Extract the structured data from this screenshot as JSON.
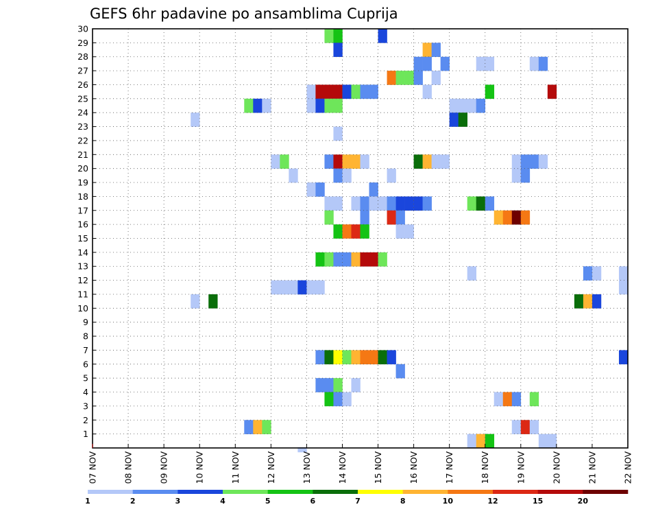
{
  "chart_data": {
    "type": "heatmap",
    "title": "GEFS 6hr padavine po ansamblima Cuprija",
    "xlabel": "",
    "ylabel": "",
    "x_start": "07 NOV",
    "x_end": "22 NOV",
    "x_step_hours": 6,
    "x_tick_labels": [
      "07 NOV",
      "08 NOV",
      "09 NOV",
      "10 NOV",
      "11 NOV",
      "12 NOV",
      "13 NOV",
      "14 NOV",
      "15 NOV",
      "16 NOV",
      "17 NOV",
      "18 NOV",
      "19 NOV",
      "20 NOV",
      "21 NOV",
      "22 NOV"
    ],
    "y_tick_labels": [
      "1",
      "2",
      "3",
      "4",
      "5",
      "6",
      "7",
      "8",
      "9",
      "10",
      "11",
      "12",
      "13",
      "14",
      "15",
      "16",
      "17",
      "18",
      "19",
      "20",
      "21",
      "22",
      "23",
      "24",
      "25",
      "26",
      "27",
      "28",
      "29",
      "30"
    ],
    "ylim": [
      0,
      30
    ],
    "grid": true,
    "legend": {
      "placement": "bottom",
      "labels": [
        "1",
        "2",
        "3",
        "4",
        "5",
        "6",
        "7",
        "8",
        "10",
        "12",
        "15",
        "20"
      ],
      "colors": [
        "#b4c8f8",
        "#5a8cf0",
        "#1a46dc",
        "#6ee65a",
        "#14c314",
        "#0a6e0a",
        "#ffff00",
        "#ffb432",
        "#f57814",
        "#dc2814",
        "#b40a0a",
        "#6e0000"
      ]
    },
    "cells": [
      [
        26,
        30,
        3
      ],
      [
        27,
        30,
        4
      ],
      [
        32,
        30,
        2
      ],
      [
        27,
        29,
        2
      ],
      [
        37,
        29,
        7
      ],
      [
        38,
        29,
        1
      ],
      [
        36,
        28,
        1
      ],
      [
        37,
        28,
        1
      ],
      [
        39,
        28,
        1
      ],
      [
        43,
        28,
        0
      ],
      [
        44,
        28,
        0
      ],
      [
        49,
        28,
        0
      ],
      [
        50,
        28,
        1
      ],
      [
        33,
        27,
        8
      ],
      [
        34,
        27,
        3
      ],
      [
        35,
        27,
        3
      ],
      [
        36,
        27,
        1
      ],
      [
        38,
        27,
        0
      ],
      [
        60,
        27,
        0
      ],
      [
        24,
        26,
        0
      ],
      [
        25,
        26,
        10
      ],
      [
        26,
        26,
        10
      ],
      [
        27,
        26,
        10
      ],
      [
        28,
        26,
        2
      ],
      [
        29,
        26,
        3
      ],
      [
        30,
        26,
        1
      ],
      [
        31,
        26,
        1
      ],
      [
        37,
        26,
        0
      ],
      [
        44,
        26,
        4
      ],
      [
        51,
        26,
        10
      ],
      [
        60,
        26,
        0
      ],
      [
        17,
        25,
        3
      ],
      [
        18,
        25,
        2
      ],
      [
        19,
        25,
        0
      ],
      [
        24,
        25,
        0
      ],
      [
        25,
        25,
        2
      ],
      [
        26,
        25,
        3
      ],
      [
        27,
        25,
        3
      ],
      [
        40,
        25,
        0
      ],
      [
        41,
        25,
        0
      ],
      [
        42,
        25,
        0
      ],
      [
        43,
        25,
        1
      ],
      [
        11,
        24,
        0
      ],
      [
        40,
        24,
        2
      ],
      [
        41,
        24,
        5
      ],
      [
        60,
        24,
        2
      ],
      [
        27,
        23,
        0
      ],
      [
        20,
        21,
        0
      ],
      [
        21,
        21,
        3
      ],
      [
        26,
        21,
        1
      ],
      [
        27,
        21,
        10
      ],
      [
        28,
        21,
        7
      ],
      [
        29,
        21,
        7
      ],
      [
        30,
        21,
        0
      ],
      [
        36,
        21,
        5
      ],
      [
        37,
        21,
        7
      ],
      [
        38,
        21,
        0
      ],
      [
        39,
        21,
        0
      ],
      [
        47,
        21,
        0
      ],
      [
        48,
        21,
        1
      ],
      [
        49,
        21,
        1
      ],
      [
        50,
        21,
        0
      ],
      [
        60,
        21,
        2
      ],
      [
        61,
        21,
        0
      ],
      [
        22,
        20,
        0
      ],
      [
        27,
        20,
        1
      ],
      [
        28,
        20,
        0
      ],
      [
        33,
        20,
        0
      ],
      [
        47,
        20,
        0
      ],
      [
        48,
        20,
        1
      ],
      [
        24,
        19,
        0
      ],
      [
        25,
        19,
        1
      ],
      [
        31,
        19,
        1
      ],
      [
        26,
        18,
        0
      ],
      [
        27,
        18,
        0
      ],
      [
        29,
        18,
        0
      ],
      [
        30,
        18,
        1
      ],
      [
        31,
        18,
        0
      ],
      [
        32,
        18,
        0
      ],
      [
        33,
        18,
        1
      ],
      [
        34,
        18,
        2
      ],
      [
        35,
        18,
        2
      ],
      [
        36,
        18,
        2
      ],
      [
        37,
        18,
        1
      ],
      [
        42,
        18,
        3
      ],
      [
        43,
        18,
        5
      ],
      [
        44,
        18,
        1
      ],
      [
        26,
        17,
        3
      ],
      [
        30,
        17,
        1
      ],
      [
        33,
        17,
        9
      ],
      [
        34,
        17,
        1
      ],
      [
        45,
        17,
        7
      ],
      [
        46,
        17,
        8
      ],
      [
        47,
        17,
        11
      ],
      [
        48,
        17,
        8
      ],
      [
        27,
        16,
        4
      ],
      [
        28,
        16,
        8
      ],
      [
        29,
        16,
        9
      ],
      [
        30,
        16,
        4
      ],
      [
        34,
        16,
        0
      ],
      [
        35,
        16,
        0
      ],
      [
        25,
        14,
        4
      ],
      [
        26,
        14,
        3
      ],
      [
        27,
        14,
        1
      ],
      [
        28,
        14,
        1
      ],
      [
        29,
        14,
        7
      ],
      [
        30,
        14,
        10
      ],
      [
        31,
        14,
        10
      ],
      [
        32,
        14,
        3
      ],
      [
        60,
        14,
        1
      ],
      [
        61,
        14,
        4
      ],
      [
        42,
        13,
        0
      ],
      [
        55,
        13,
        1
      ],
      [
        56,
        13,
        0
      ],
      [
        59,
        13,
        0
      ],
      [
        60,
        13,
        4
      ],
      [
        61,
        13,
        6
      ],
      [
        20,
        12,
        0
      ],
      [
        21,
        12,
        0
      ],
      [
        22,
        12,
        0
      ],
      [
        23,
        12,
        2
      ],
      [
        24,
        12,
        0
      ],
      [
        25,
        12,
        0
      ],
      [
        59,
        12,
        0
      ],
      [
        60,
        12,
        8
      ],
      [
        61,
        12,
        0
      ],
      [
        11,
        11,
        0
      ],
      [
        13,
        11,
        5
      ],
      [
        54,
        11,
        5
      ],
      [
        55,
        11,
        7
      ],
      [
        56,
        11,
        2
      ],
      [
        60,
        11,
        7
      ],
      [
        61,
        11,
        5
      ],
      [
        25,
        7,
        1
      ],
      [
        26,
        7,
        5
      ],
      [
        27,
        7,
        6
      ],
      [
        28,
        7,
        3
      ],
      [
        29,
        7,
        7
      ],
      [
        30,
        7,
        8
      ],
      [
        31,
        7,
        8
      ],
      [
        32,
        7,
        5
      ],
      [
        33,
        7,
        2
      ],
      [
        59,
        7,
        2
      ],
      [
        60,
        7,
        0
      ],
      [
        34,
        6,
        1
      ],
      [
        25,
        5,
        1
      ],
      [
        26,
        5,
        1
      ],
      [
        27,
        5,
        3
      ],
      [
        29,
        5,
        0
      ],
      [
        26,
        4,
        4
      ],
      [
        27,
        4,
        1
      ],
      [
        28,
        4,
        0
      ],
      [
        45,
        4,
        0
      ],
      [
        46,
        4,
        8
      ],
      [
        47,
        4,
        1
      ],
      [
        49,
        4,
        3
      ],
      [
        17,
        2,
        1
      ],
      [
        18,
        2,
        7
      ],
      [
        19,
        2,
        3
      ],
      [
        47,
        2,
        0
      ],
      [
        48,
        2,
        9
      ],
      [
        49,
        2,
        0
      ],
      [
        42,
        1,
        0
      ],
      [
        43,
        1,
        7
      ],
      [
        44,
        1,
        4
      ],
      [
        50,
        1,
        0
      ],
      [
        51,
        1,
        0
      ],
      [
        23,
        0,
        0
      ]
    ]
  }
}
